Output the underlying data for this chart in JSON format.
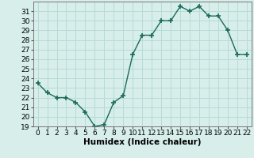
{
  "x": [
    0,
    1,
    2,
    3,
    4,
    5,
    6,
    7,
    8,
    9,
    10,
    11,
    12,
    13,
    14,
    15,
    16,
    17,
    18,
    19,
    20,
    21,
    22
  ],
  "y": [
    23.5,
    22.5,
    22.0,
    22.0,
    21.5,
    20.5,
    19.0,
    19.2,
    21.5,
    22.2,
    26.5,
    28.5,
    28.5,
    30.0,
    30.0,
    31.5,
    31.0,
    31.5,
    30.5,
    30.5,
    29.0,
    26.5,
    26.5
  ],
  "title": "",
  "xlabel": "Humidex (Indice chaleur)",
  "ylabel": "",
  "xlim": [
    -0.5,
    22.5
  ],
  "ylim": [
    19,
    32
  ],
  "yticks": [
    19,
    20,
    21,
    22,
    23,
    24,
    25,
    26,
    27,
    28,
    29,
    30,
    31
  ],
  "xticks": [
    0,
    1,
    2,
    3,
    4,
    5,
    6,
    7,
    8,
    9,
    10,
    11,
    12,
    13,
    14,
    15,
    16,
    17,
    18,
    19,
    20,
    21,
    22
  ],
  "line_color": "#1a6b5a",
  "marker": "+",
  "marker_size": 5,
  "bg_color": "#d7eeea",
  "grid_color": "#b8dbd5",
  "tick_label_fontsize": 6.5,
  "xlabel_fontsize": 7.5,
  "line_width": 1.0
}
